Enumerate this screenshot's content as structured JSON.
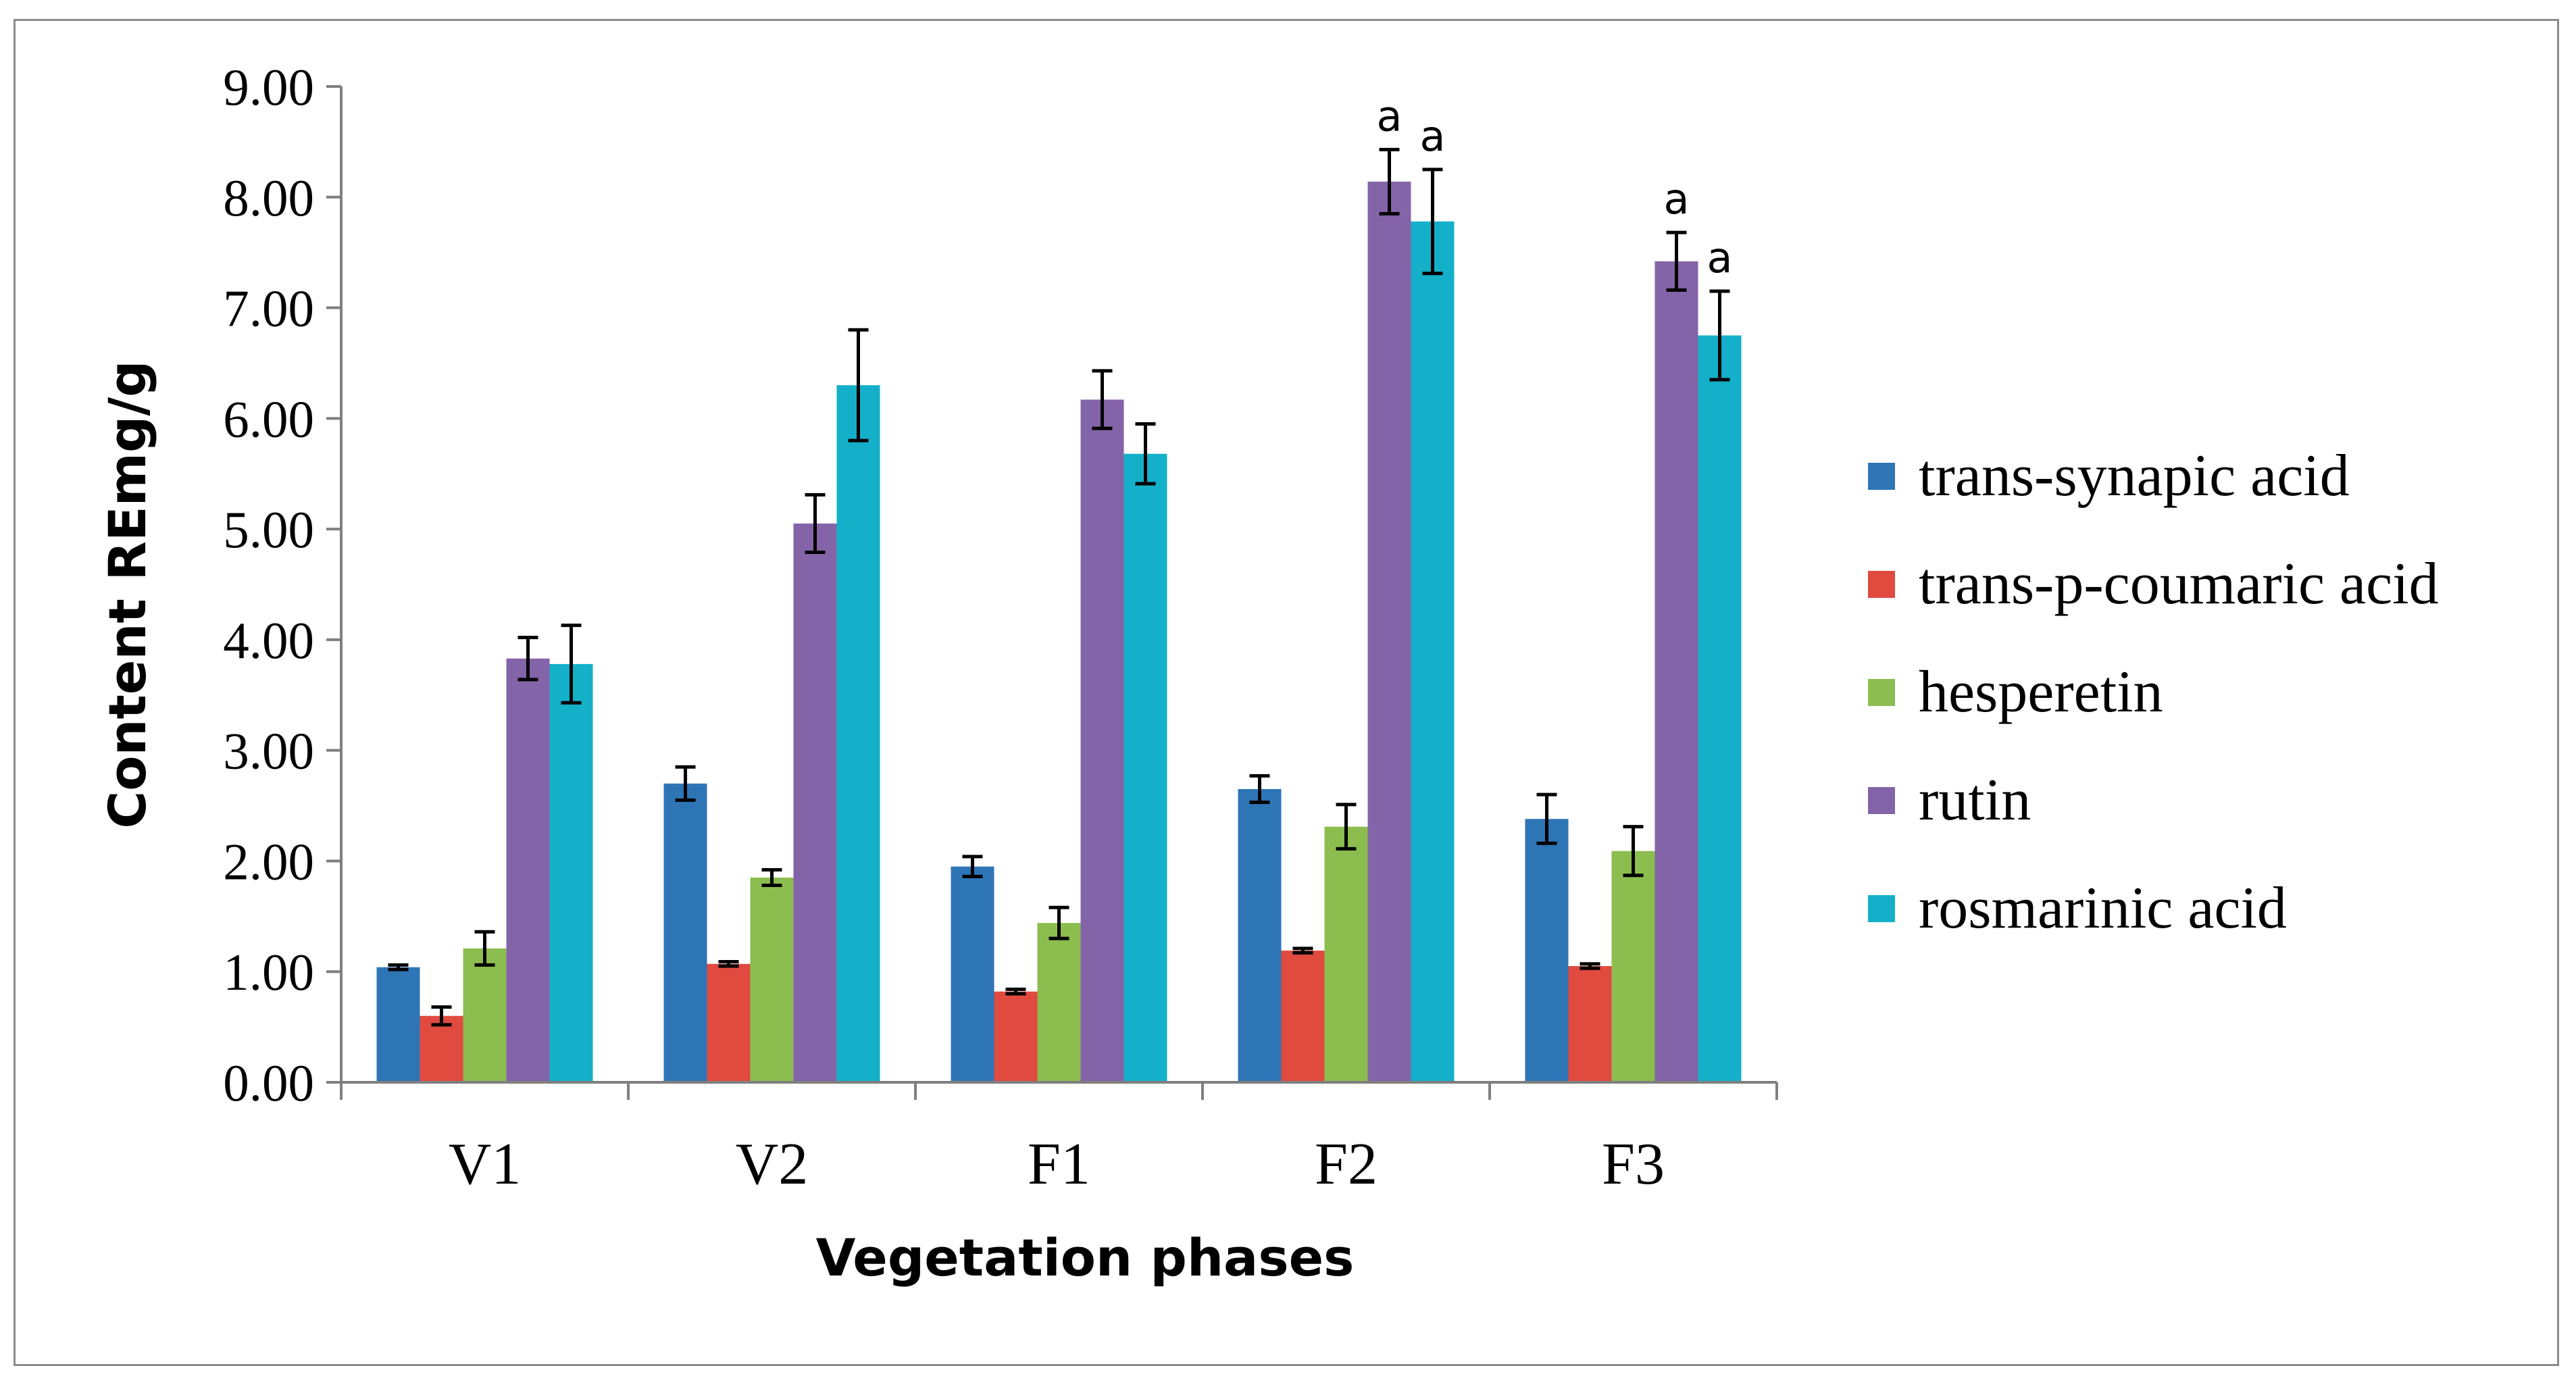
{
  "chart_data": {
    "type": "bar",
    "title": "",
    "xlabel": "Vegetation phases",
    "ylabel": "Content REmg/g",
    "ylim": [
      0,
      9
    ],
    "yticks": [
      "0.00",
      "1.00",
      "2.00",
      "3.00",
      "4.00",
      "5.00",
      "6.00",
      "7.00",
      "8.00",
      "9.00"
    ],
    "categories": [
      "V1",
      "V2",
      "F1",
      "F2",
      "F3"
    ],
    "grid": false,
    "legend_position": "right",
    "series": [
      {
        "name": "trans-synapic acid",
        "color": "#2e75b6",
        "values": [
          1.04,
          2.7,
          1.95,
          2.65,
          2.38
        ],
        "errors": [
          0.02,
          0.15,
          0.09,
          0.12,
          0.22
        ]
      },
      {
        "name": "trans-p-coumaric acid",
        "color": "#e04a3f",
        "values": [
          0.6,
          1.07,
          0.82,
          1.19,
          1.05
        ],
        "errors": [
          0.08,
          0.02,
          0.02,
          0.02,
          0.02
        ]
      },
      {
        "name": "hesperetin",
        "color": "#8cbd4f",
        "values": [
          1.21,
          1.85,
          1.44,
          2.31,
          2.09
        ],
        "errors": [
          0.15,
          0.07,
          0.14,
          0.2,
          0.22
        ]
      },
      {
        "name": "rutin",
        "color": "#8464a8",
        "values": [
          3.83,
          5.05,
          6.17,
          8.14,
          7.42
        ],
        "errors": [
          0.19,
          0.26,
          0.26,
          0.29,
          0.26
        ]
      },
      {
        "name": "rosmarinic acid",
        "color": "#14b0c9",
        "values": [
          3.78,
          6.3,
          5.68,
          7.78,
          6.75
        ],
        "errors": [
          0.35,
          0.5,
          0.27,
          0.47,
          0.4
        ]
      }
    ],
    "annotations": [
      {
        "category": "F2",
        "series": "rutin",
        "text": "a"
      },
      {
        "category": "F2",
        "series": "rosmarinic acid",
        "text": "a"
      },
      {
        "category": "F3",
        "series": "rutin",
        "text": "a"
      },
      {
        "category": "F3",
        "series": "rosmarinic acid",
        "text": "a"
      }
    ]
  }
}
